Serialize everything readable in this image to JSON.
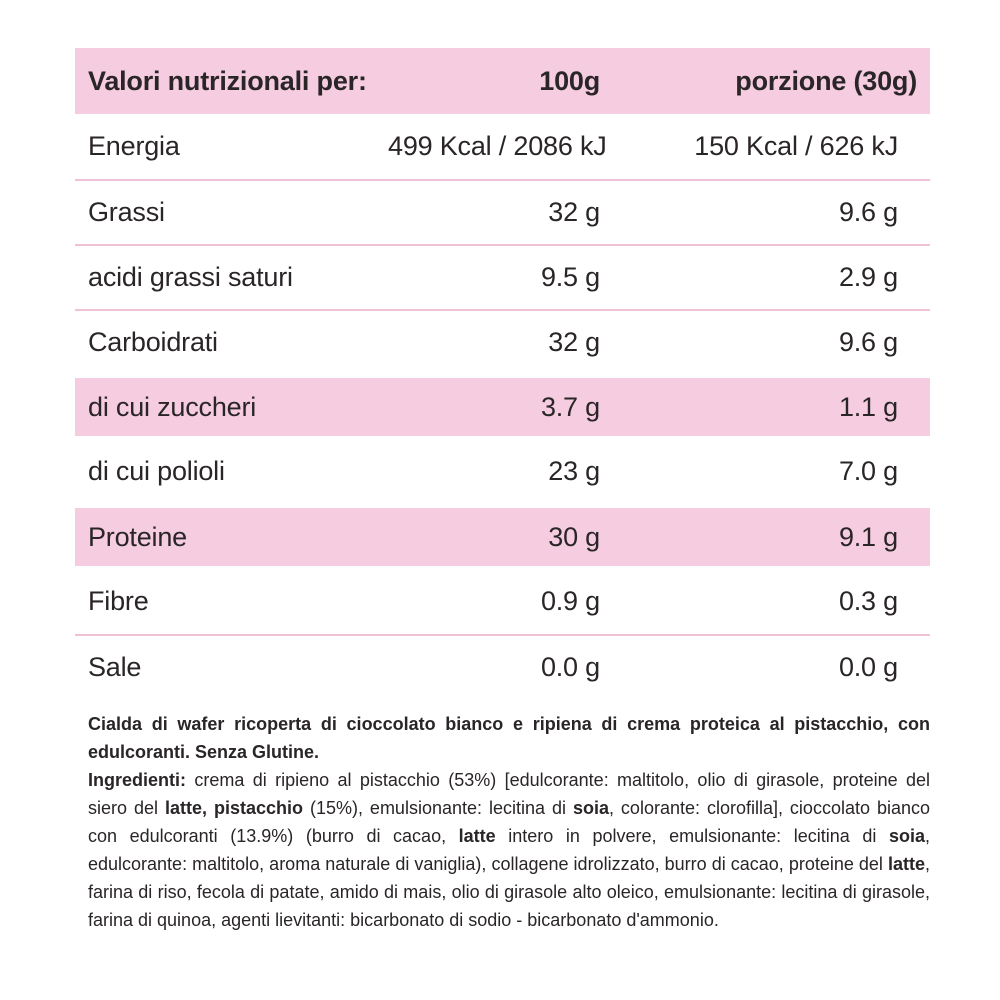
{
  "colors": {
    "band_pink": "#f5cce0",
    "line_pink": "#f1c2d5",
    "text_dark": "#2a2526"
  },
  "table": {
    "header": {
      "col1": "Valori nutrizionali per:",
      "col2": "100g",
      "col3": "porzione (30g)"
    },
    "rows": [
      {
        "label": "Energia",
        "per_100g": "499 Kcal / 2086 kJ",
        "per_portion": "150 Kcal / 626 kJ",
        "highlighted": false,
        "divider": false
      },
      {
        "label": "Grassi",
        "per_100g": "32 g",
        "per_portion": "9.6 g",
        "highlighted": false,
        "divider": true
      },
      {
        "label": "acidi grassi saturi",
        "per_100g": "9.5 g",
        "per_portion": "2.9 g",
        "highlighted": false,
        "divider": true
      },
      {
        "label": "Carboidrati",
        "per_100g": "32 g",
        "per_portion": "9.6 g",
        "highlighted": false,
        "divider": true
      },
      {
        "label": "di cui zuccheri",
        "per_100g": "3.7 g",
        "per_portion": "1.1 g",
        "highlighted": true,
        "divider": false
      },
      {
        "label": "di cui polioli",
        "per_100g": "23 g",
        "per_portion": "7.0 g",
        "highlighted": false,
        "divider": false
      },
      {
        "label": "Proteine",
        "per_100g": "30 g",
        "per_portion": "9.1 g",
        "highlighted": true,
        "divider": false
      },
      {
        "label": "Fibre",
        "per_100g": "0.9 g",
        "per_portion": "0.3 g",
        "highlighted": false,
        "divider": false
      },
      {
        "label": "Sale",
        "per_100g": "0.0 g",
        "per_portion": "0.0 g",
        "highlighted": false,
        "divider": true
      }
    ]
  },
  "description_segments": [
    {
      "text": "Cialda di wafer ricoperta di cioccolato bianco e ripiena di crema proteica al pistacchio, con edulcoranti. Senza Glutine.",
      "bold": true
    }
  ],
  "ingredients_segments": [
    {
      "text": "Ingredienti:",
      "bold": true
    },
    {
      "text": " crema di ripieno al pistacchio (53%) [edulcorante: maltitolo, olio di girasole, proteine del siero del ",
      "bold": false
    },
    {
      "text": "latte, pistacchio",
      "bold": true
    },
    {
      "text": " (15%), emulsionante: lecitina di ",
      "bold": false
    },
    {
      "text": "soia",
      "bold": true
    },
    {
      "text": ", colorante: clorofilla], cioccolato bianco con edulcoranti (13.9%) (burro di cacao, ",
      "bold": false
    },
    {
      "text": "latte",
      "bold": true
    },
    {
      "text": " intero in polvere, emulsionante: lecitina di ",
      "bold": false
    },
    {
      "text": "soia",
      "bold": true
    },
    {
      "text": ", edulcorante: maltitolo, aroma naturale di vaniglia), collagene idrolizzato, burro di cacao, proteine del ",
      "bold": false
    },
    {
      "text": "latte",
      "bold": true
    },
    {
      "text": ", farina di riso, fecola di patate, amido di mais, olio di girasole alto oleico, emulsionante: lecitina di girasole, farina di quinoa, agenti lievitanti: bicarbonato di sodio - bicarbonato d'ammonio.",
      "bold": false
    }
  ]
}
